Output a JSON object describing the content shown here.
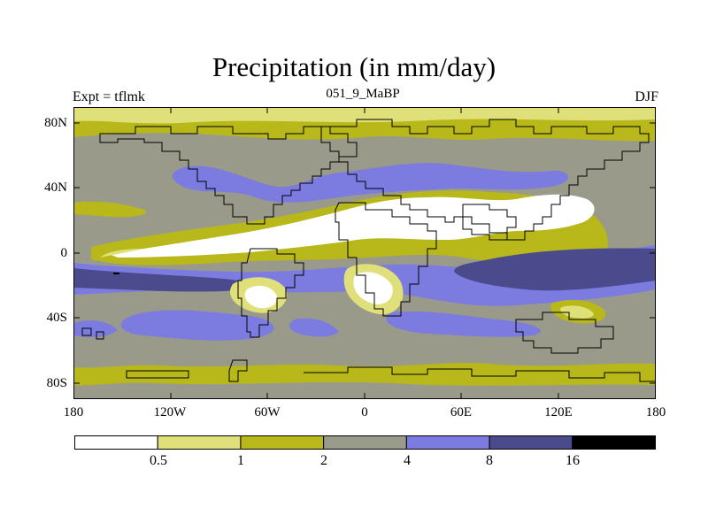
{
  "header": {
    "title": "Precipitation (in mm/day)",
    "left": "Expt = tflmk",
    "center": "051_9_MaBP",
    "right": "DJF"
  },
  "map": {
    "projection": "cylindrical-equidistant",
    "variable": "Precipitation",
    "units": "mm/day",
    "lat_ticks": [
      "80N",
      "40N",
      "0",
      "40S",
      "80S"
    ],
    "lon_ticks": [
      "180",
      "120W",
      "60W",
      "0",
      "60E",
      "120E",
      "180"
    ]
  },
  "colorbar": {
    "labels": [
      "0.5",
      "1",
      "2",
      "4",
      "8",
      "16"
    ],
    "colors": [
      "#ffffff",
      "#e0e07a",
      "#b8b81a",
      "#9a9a8a",
      "#7b7be0",
      "#4a4a8c",
      "#000000"
    ]
  }
}
